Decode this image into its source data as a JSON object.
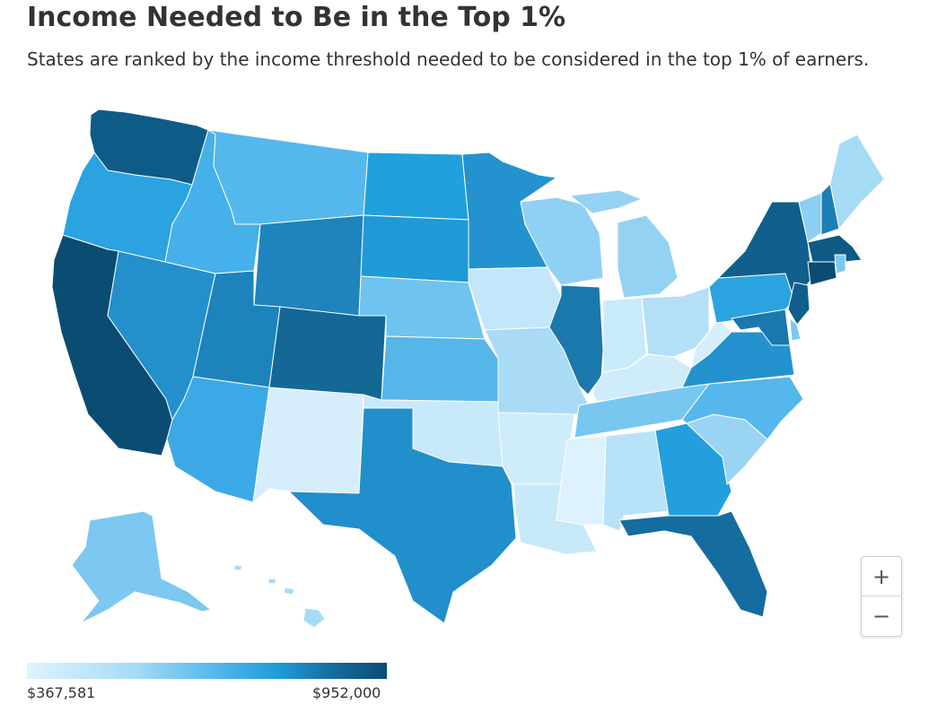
{
  "title": "Income Needed to Be in the Top 1%",
  "subtitle": "States are ranked by the income threshold needed to be considered in the top 1% of earners.",
  "zoom": {
    "in_label": "+",
    "out_label": "−"
  },
  "legend": {
    "min_label": "$367,581",
    "max_label": "$952,000",
    "min_value": 367581,
    "max_value": 952000,
    "colors": [
      "#def3fd",
      "#a6dbf6",
      "#4cb3ea",
      "#1f9bd9",
      "#166c9f",
      "#0b4c73"
    ]
  },
  "states": [
    {
      "code": "WA",
      "color": "#0f5b87"
    },
    {
      "code": "OR",
      "color": "#2aa3e0"
    },
    {
      "code": "CA",
      "color": "#0b4c73"
    },
    {
      "code": "NV",
      "color": "#2390cc"
    },
    {
      "code": "ID",
      "color": "#45b0ea"
    },
    {
      "code": "MT",
      "color": "#55b8ec"
    },
    {
      "code": "WY",
      "color": "#1f84bd"
    },
    {
      "code": "UT",
      "color": "#1c83bd"
    },
    {
      "code": "AZ",
      "color": "#3ba9e6"
    },
    {
      "code": "CO",
      "color": "#136896"
    },
    {
      "code": "NM",
      "color": "#d6eefb"
    },
    {
      "code": "ND",
      "color": "#21a0dc"
    },
    {
      "code": "SD",
      "color": "#1f9ad6"
    },
    {
      "code": "NE",
      "color": "#6ec3ef"
    },
    {
      "code": "KS",
      "color": "#55b6ea"
    },
    {
      "code": "OK",
      "color": "#c8e9fb"
    },
    {
      "code": "TX",
      "color": "#218fcb"
    },
    {
      "code": "MN",
      "color": "#2492cf"
    },
    {
      "code": "IA",
      "color": "#c3e6fa"
    },
    {
      "code": "MO",
      "color": "#a9daf6"
    },
    {
      "code": "AR",
      "color": "#cfecfb"
    },
    {
      "code": "LA",
      "color": "#c7e9fa"
    },
    {
      "code": "WI",
      "color": "#90d0f3"
    },
    {
      "code": "IL",
      "color": "#1b78ad"
    },
    {
      "code": "MI",
      "color": "#94d2f3"
    },
    {
      "code": "IN",
      "color": "#c9eafb"
    },
    {
      "code": "OH",
      "color": "#b3dff7"
    },
    {
      "code": "KY",
      "color": "#cfecfb"
    },
    {
      "code": "TN",
      "color": "#78c7f0"
    },
    {
      "code": "MS",
      "color": "#ddf2fd"
    },
    {
      "code": "AL",
      "color": "#b8e2f8"
    },
    {
      "code": "GA",
      "color": "#239fdd"
    },
    {
      "code": "FL",
      "color": "#156c9e"
    },
    {
      "code": "SC",
      "color": "#9ad4f4"
    },
    {
      "code": "NC",
      "color": "#55b7eb"
    },
    {
      "code": "VA",
      "color": "#2392cf"
    },
    {
      "code": "WV",
      "color": "#d6eefb"
    },
    {
      "code": "PA",
      "color": "#2aa3e0"
    },
    {
      "code": "NY",
      "color": "#115f8c"
    },
    {
      "code": "VT",
      "color": "#8ccff3"
    },
    {
      "code": "NH",
      "color": "#1c7fb8"
    },
    {
      "code": "ME",
      "color": "#a6dbf6"
    },
    {
      "code": "MA",
      "color": "#0d5a85"
    },
    {
      "code": "CT",
      "color": "#0b4c73"
    },
    {
      "code": "RI",
      "color": "#7ac8f0"
    },
    {
      "code": "NJ",
      "color": "#0f5f8c"
    },
    {
      "code": "DE",
      "color": "#7cc8f1"
    },
    {
      "code": "MD",
      "color": "#1b78ad"
    },
    {
      "code": "AK",
      "color": "#7cc8f1"
    },
    {
      "code": "HI",
      "color": "#a6dbf6"
    }
  ]
}
